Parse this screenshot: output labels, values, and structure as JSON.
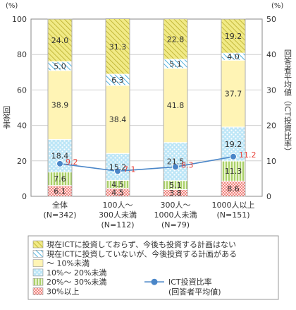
{
  "chart_data": {
    "type": "bar",
    "stacked": true,
    "categories": [
      [
        "全体",
        "(N=342)"
      ],
      [
        "100人～",
        "300人未満",
        "(N=112)"
      ],
      [
        "300人～",
        "1000人未満",
        "(N=79)"
      ],
      [
        "1000人以上",
        "(N=151)"
      ]
    ],
    "left_axis": {
      "unit": "(%)",
      "title": "回答率",
      "ylim": [
        0,
        100
      ],
      "ticks": [
        "0",
        "20",
        "40",
        "60",
        "80",
        "100"
      ]
    },
    "right_axis": {
      "unit": "(%)",
      "title": "回答者平均値（ICT投資比率）",
      "ylim": [
        0,
        50
      ],
      "ticks": [
        "0",
        "10",
        "20",
        "30",
        "40",
        "50"
      ]
    },
    "series": [
      {
        "name": "30%以上",
        "values": [
          6.1,
          4.5,
          3.8,
          8.6
        ],
        "labels": [
          "6.1",
          "4.5",
          "3.8",
          "8.6"
        ],
        "color": "#f08a86",
        "pattern": "dots-red"
      },
      {
        "name": "20%～ 30%未満",
        "values": [
          7.6,
          4.5,
          5.1,
          11.3
        ],
        "labels": [
          "7.6",
          "4.5",
          "5.1",
          "11.3"
        ],
        "color": "#c6e094",
        "pattern": "vlines-green"
      },
      {
        "name": "10%～ 20%未満",
        "values": [
          18.4,
          15.2,
          21.5,
          19.2
        ],
        "labels": [
          "18.4",
          "15.2",
          "21.5",
          "19.2"
        ],
        "color": "#bde6f7",
        "pattern": "dots-blue"
      },
      {
        "name": "～ 10%未満",
        "values": [
          38.9,
          38.4,
          41.8,
          37.7
        ],
        "labels": [
          "38.9",
          "38.4",
          "41.8",
          "37.7"
        ],
        "color": "#fff4b5",
        "pattern": "solid"
      },
      {
        "name": "現在ICTに投資していないが、今後投資する計画がある",
        "values": [
          5.0,
          6.3,
          5.1,
          4.0
        ],
        "labels": [
          "5.0",
          "6.3",
          "5.1",
          "4.0"
        ],
        "color": "#9fd9ef",
        "pattern": "diag-blue"
      },
      {
        "name": "現在ICTに投資しておらず、今後も投資する計画はない",
        "values": [
          24.0,
          31.3,
          22.8,
          19.2
        ],
        "labels": [
          "24.0",
          "31.3",
          "22.8",
          "19.2"
        ],
        "color": "#f1ea86",
        "pattern": "diag-yellow"
      }
    ],
    "line_series": {
      "name": "ICT投資比率",
      "subname": "(回答者平均値)",
      "axis": "right",
      "values": [
        9.2,
        7.1,
        8.3,
        11.2
      ],
      "labels": [
        "9.2",
        "7.1",
        "8.3",
        "11.2"
      ],
      "color": "#4a86c8",
      "label_color": "#e8423a"
    },
    "legend": {
      "placement": "bottom",
      "order": [
        5,
        4,
        3,
        2,
        1,
        0
      ]
    }
  }
}
